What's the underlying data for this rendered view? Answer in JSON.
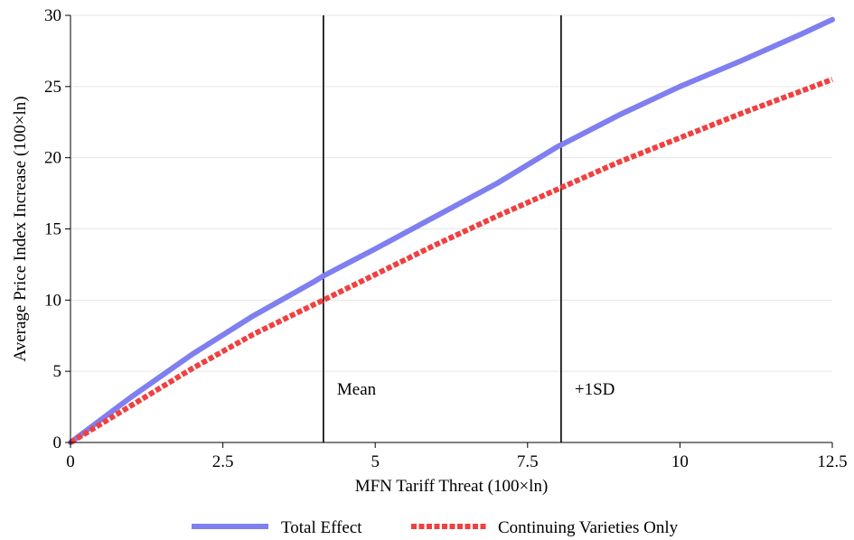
{
  "chart_data": {
    "type": "line",
    "title": "",
    "xlabel": "MFN Tariff Threat (100×ln)",
    "ylabel": "Average Price Index Increase (100×ln)",
    "xlim": [
      0,
      12.5
    ],
    "ylim": [
      0,
      30
    ],
    "xticks": [
      0,
      2.5,
      5,
      7.5,
      10,
      12.5
    ],
    "xtick_labels": [
      "0",
      "2.5",
      "5",
      "7.5",
      "10",
      "12.5"
    ],
    "yticks": [
      0,
      5,
      10,
      15,
      20,
      25,
      30
    ],
    "ytick_labels": [
      "0",
      "5",
      "10",
      "15",
      "20",
      "25",
      "30"
    ],
    "grid": "horizontal",
    "legend_position": "bottom",
    "series": [
      {
        "name": "Total Effect",
        "color": "#7f7ff0",
        "style": "solid",
        "x": [
          0,
          1,
          2,
          3,
          4,
          4.15,
          5,
          6,
          7,
          8,
          8.05,
          9,
          10,
          11,
          12,
          12.5
        ],
        "y": [
          0,
          3.2,
          6.2,
          8.9,
          11.3,
          11.7,
          13.6,
          15.9,
          18.2,
          20.8,
          20.9,
          23.0,
          25.0,
          26.8,
          28.7,
          29.7
        ]
      },
      {
        "name": "Continuing Varieties Only",
        "color": "#f04040",
        "style": "dashed",
        "x": [
          0,
          1,
          2,
          3,
          4,
          4.15,
          5,
          6,
          7,
          8,
          8.05,
          9,
          10,
          11,
          12,
          12.5
        ],
        "y": [
          0,
          2.6,
          5.2,
          7.6,
          9.7,
          10.0,
          11.8,
          13.9,
          15.9,
          17.8,
          17.9,
          19.7,
          21.4,
          23.1,
          24.7,
          25.5
        ]
      }
    ],
    "vlines": [
      {
        "x": 4.15,
        "label": "Mean"
      },
      {
        "x": 8.05,
        "label": "+1SD"
      }
    ]
  }
}
